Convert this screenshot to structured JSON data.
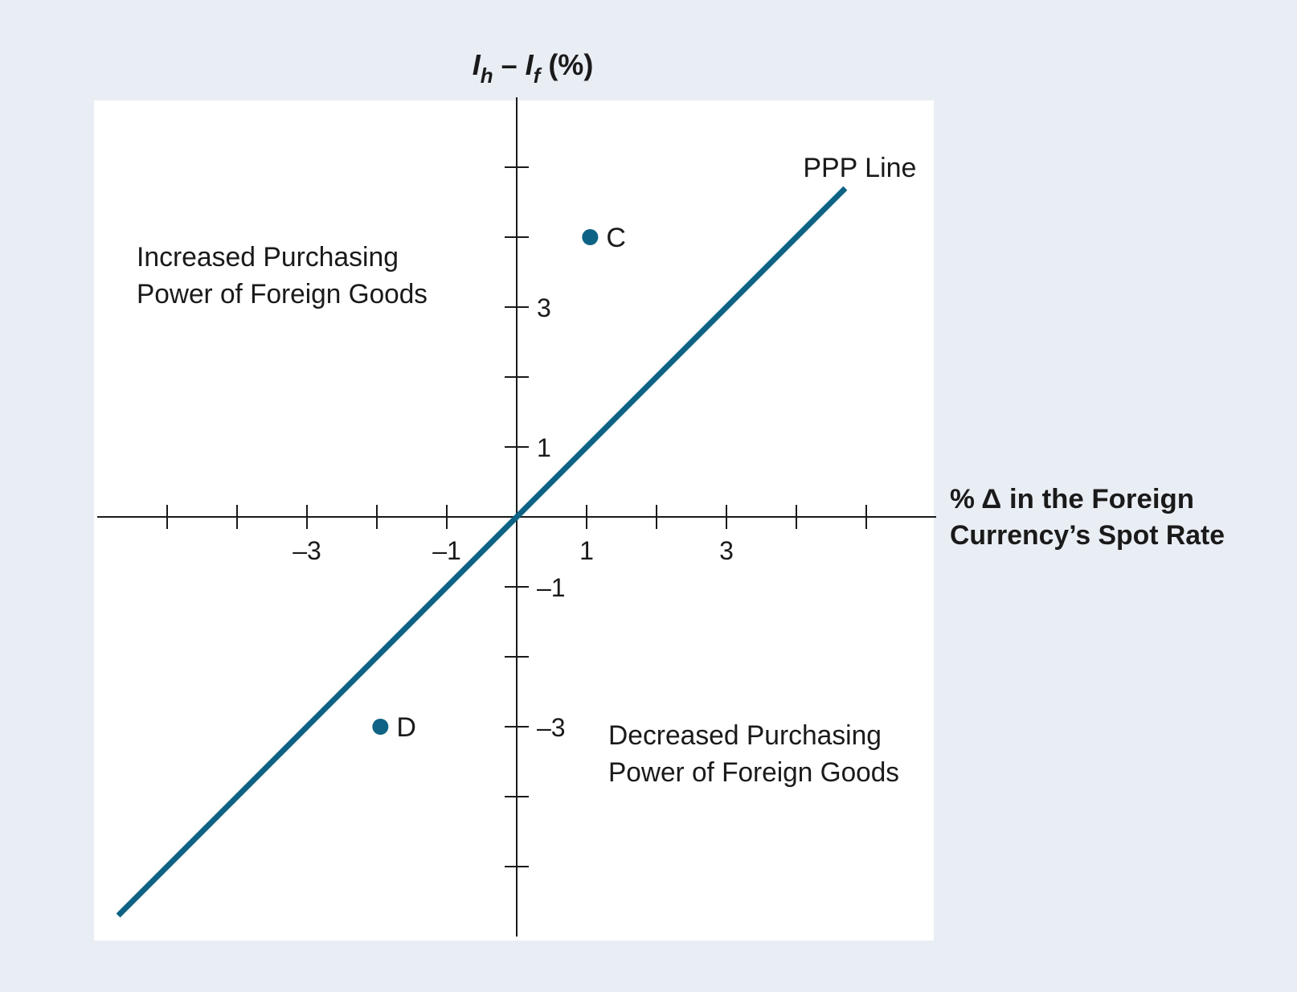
{
  "chart_data": {
    "type": "line",
    "y_axis_title": {
      "main_h": "I",
      "sub_h": "h",
      "dash": " – ",
      "main_f": "I",
      "sub_f": "f",
      "suffix": " (%)"
    },
    "x_axis_title": [
      "% Δ in the Foreign",
      "Currency’s Spot Rate"
    ],
    "xlim": [
      -6,
      6
    ],
    "ylim": [
      -6,
      6
    ],
    "x_ticks": [
      -5,
      -4,
      -3,
      -2,
      -1,
      1,
      2,
      3,
      4,
      5
    ],
    "y_ticks": [
      -5,
      -4,
      -3,
      -2,
      -1,
      1,
      2,
      3,
      4,
      5
    ],
    "x_tick_labels": [
      {
        "value": -3,
        "label": "–3"
      },
      {
        "value": -1,
        "label": "–1"
      },
      {
        "value": 1,
        "label": "1"
      },
      {
        "value": 3,
        "label": "3"
      }
    ],
    "y_tick_labels": [
      {
        "value": 3,
        "label": "3"
      },
      {
        "value": 1,
        "label": "1"
      },
      {
        "value": -1,
        "label": "–1"
      },
      {
        "value": -3,
        "label": "–3"
      }
    ],
    "series": [
      {
        "name": "PPP Line",
        "x": [
          -5.7,
          4.7
        ],
        "y": [
          -5.7,
          4.7
        ],
        "color": "#0e6384"
      }
    ],
    "points": [
      {
        "label": "C",
        "x": 1.05,
        "y": 4.0,
        "color": "#0e6384"
      },
      {
        "label": "D",
        "x": -1.95,
        "y": -3.0,
        "color": "#0e6384"
      }
    ],
    "region_labels": {
      "upper_left": [
        "Increased Purchasing",
        "Power of Foreign Goods"
      ],
      "lower_right": [
        "Decreased Purchasing",
        "Power of Foreign Goods"
      ]
    }
  }
}
